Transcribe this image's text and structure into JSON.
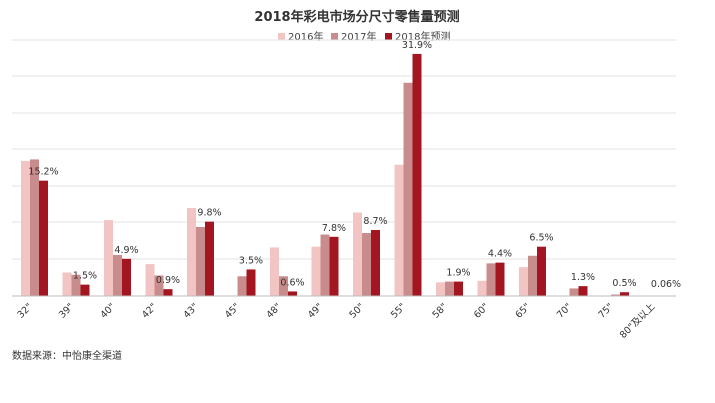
{
  "chart_data": {
    "type": "bar",
    "title": "2018年彩电市场分尺寸零售量预测",
    "xlabel": "",
    "ylabel": "",
    "categories": [
      "32\"",
      "39\"",
      "40\"",
      "42\"",
      "43\"",
      "45\"",
      "48\"",
      "49\"",
      "50\"",
      "55\"",
      "58\"",
      "60\"",
      "65\"",
      "70\"",
      "75\"",
      "80\"及以上"
    ],
    "series": [
      {
        "name": "2016年",
        "color": "#f2c4c4",
        "values": [
          17.8,
          3.1,
          10.0,
          4.2,
          11.6,
          0,
          6.4,
          6.5,
          11.0,
          17.3,
          1.8,
          2.0,
          3.8,
          0,
          0,
          0
        ]
      },
      {
        "name": "2017年",
        "color": "#c98c8c",
        "values": [
          18.0,
          2.8,
          5.4,
          2.7,
          9.1,
          2.6,
          2.6,
          8.1,
          8.3,
          28.1,
          1.9,
          4.3,
          5.3,
          1.0,
          0.2,
          0.02
        ]
      },
      {
        "name": "2018年预测",
        "color": "#a31621",
        "values": [
          15.2,
          1.5,
          4.9,
          0.9,
          9.8,
          3.5,
          0.6,
          7.8,
          8.7,
          31.9,
          1.9,
          4.4,
          6.5,
          1.3,
          0.5,
          0.06
        ]
      }
    ],
    "data_labels": [
      "15.2%",
      "1.5%",
      "4.9%",
      "0.9%",
      "9.8%",
      "3.5%",
      "0.6%",
      "7.8%",
      "8.7%",
      "31.9%",
      "1.9%",
      "4.4%",
      "6.5%",
      "1.3%",
      "0.5%",
      "0.06%"
    ],
    "ylim": [
      0,
      34
    ],
    "grid": true,
    "legend_position": "top-center"
  },
  "source": "数据来源：中怡康全渠道"
}
